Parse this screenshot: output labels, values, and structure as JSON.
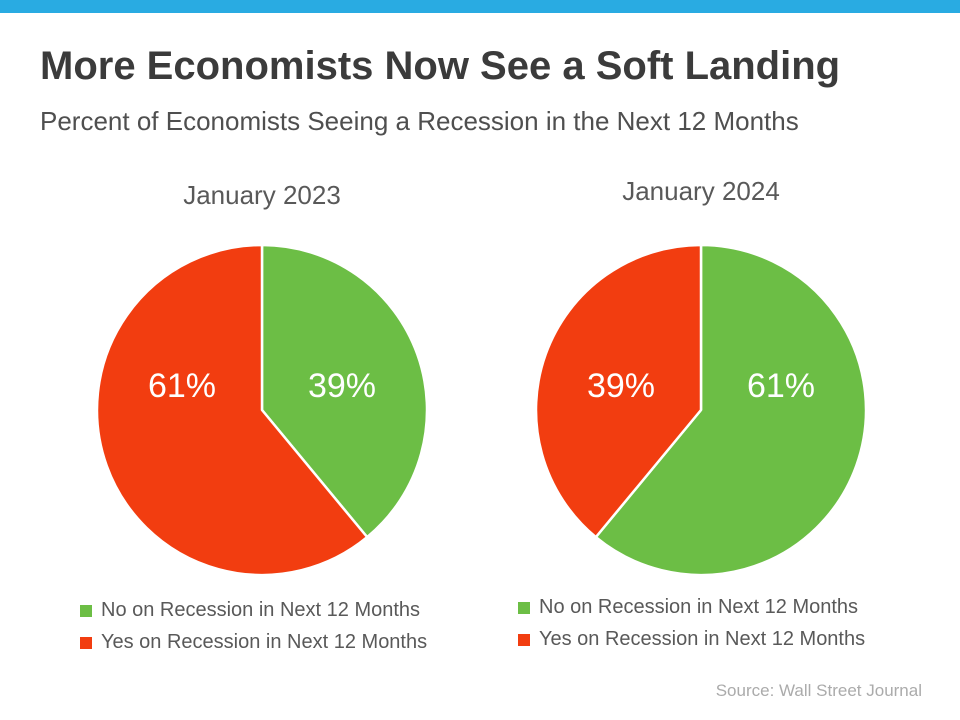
{
  "page": {
    "title": "More Economists Now See a Soft Landing",
    "subtitle": "Percent of Economists Seeing a Recession in the Next 12 Months",
    "source": "Source: Wall Street Journal"
  },
  "colors": {
    "accent_bar": "#29abe2",
    "green": "#6cbe45",
    "red": "#f23d10"
  },
  "chart_data": [
    {
      "type": "pie",
      "title": "January 2023",
      "units": "percent",
      "direction": "clockwise",
      "start_angle_deg": 0,
      "legend_position": "bottom",
      "slices": [
        {
          "label": "No on Recession in Next 12 Months",
          "value": 39,
          "display": "39%",
          "color_key": "green"
        },
        {
          "label": "Yes on Recession in Next 12 Months",
          "value": 61,
          "display": "61%",
          "color_key": "red"
        }
      ],
      "legend": [
        {
          "label": "No on Recession in Next 12 Months",
          "color_key": "green"
        },
        {
          "label": "Yes on Recession in Next 12 Months",
          "color_key": "red"
        }
      ]
    },
    {
      "type": "pie",
      "title": "January 2024",
      "units": "percent",
      "direction": "clockwise",
      "start_angle_deg": 0,
      "legend_position": "bottom",
      "slices": [
        {
          "label": "No on Recession in Next 12 Months",
          "value": 61,
          "display": "61%",
          "color_key": "green"
        },
        {
          "label": "Yes on Recession in Next 12 Months",
          "value": 39,
          "display": "39%",
          "color_key": "red"
        }
      ],
      "legend": [
        {
          "label": "No on Recession in Next 12 Months",
          "color_key": "green"
        },
        {
          "label": "Yes on Recession in Next 12 Months",
          "color_key": "red"
        }
      ]
    }
  ]
}
